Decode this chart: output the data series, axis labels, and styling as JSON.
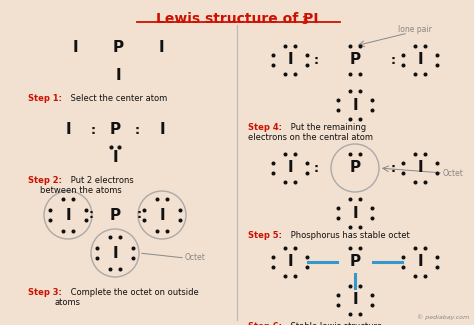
{
  "title": "Lewis structure of PI",
  "title_sub": "3",
  "bg_color": "#f2e0d0",
  "step_color": "#cc1100",
  "atom_color": "#111111",
  "bond_color": "#3399cc",
  "circle_color": "#aaaaaa",
  "dot_color": "#111111",
  "octet_color": "#888888",
  "watermark": "© pediabay.com",
  "fig_w": 4.74,
  "fig_h": 3.25,
  "dpi": 100
}
